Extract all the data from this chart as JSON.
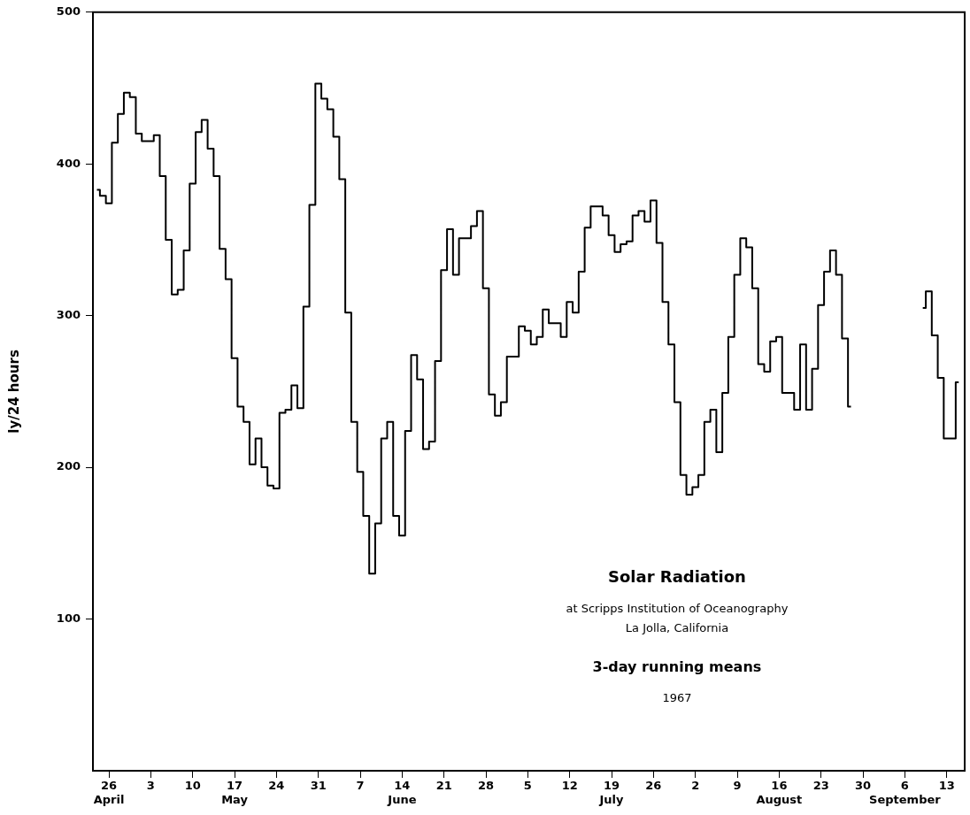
{
  "chart_data": {
    "type": "step",
    "title": "Solar Radiation",
    "subtitle": "at Scripps Institution of Oceanography",
    "annotations": [
      "La Jolla, California",
      "3-day running means",
      "1967"
    ],
    "ylabel": "ly/24 hours",
    "color": "#000000",
    "x": [
      "1967-04-24",
      "1967-04-25",
      "1967-04-26",
      "1967-04-27",
      "1967-04-28",
      "1967-04-29",
      "1967-04-30",
      "1967-05-01",
      "1967-05-02",
      "1967-05-03",
      "1967-05-04",
      "1967-05-05",
      "1967-05-06",
      "1967-05-07",
      "1967-05-08",
      "1967-05-09",
      "1967-05-10",
      "1967-05-11",
      "1967-05-12",
      "1967-05-13",
      "1967-05-14",
      "1967-05-15",
      "1967-05-16",
      "1967-05-17",
      "1967-05-18",
      "1967-05-19",
      "1967-05-20",
      "1967-05-21",
      "1967-05-22",
      "1967-05-23",
      "1967-05-24",
      "1967-05-25",
      "1967-05-26",
      "1967-05-27",
      "1967-05-28",
      "1967-05-29",
      "1967-05-30",
      "1967-05-31",
      "1967-06-01",
      "1967-06-02",
      "1967-06-03",
      "1967-06-04",
      "1967-06-05",
      "1967-06-06",
      "1967-06-07",
      "1967-06-08",
      "1967-06-09",
      "1967-06-10",
      "1967-06-11",
      "1967-06-12",
      "1967-06-13",
      "1967-06-14",
      "1967-06-15",
      "1967-06-16",
      "1967-06-17",
      "1967-06-18",
      "1967-06-19",
      "1967-06-20",
      "1967-06-21",
      "1967-06-22",
      "1967-06-23",
      "1967-06-24",
      "1967-06-25",
      "1967-06-26",
      "1967-06-27",
      "1967-06-28",
      "1967-06-29",
      "1967-06-30",
      "1967-07-01",
      "1967-07-02",
      "1967-07-03",
      "1967-07-04",
      "1967-07-05",
      "1967-07-06",
      "1967-07-07",
      "1967-07-08",
      "1967-07-09",
      "1967-07-10",
      "1967-07-11",
      "1967-07-12",
      "1967-07-13",
      "1967-07-14",
      "1967-07-15",
      "1967-07-16",
      "1967-07-17",
      "1967-07-18",
      "1967-07-19",
      "1967-07-20",
      "1967-07-21",
      "1967-07-22",
      "1967-07-23",
      "1967-07-24",
      "1967-07-25",
      "1967-07-26",
      "1967-07-27",
      "1967-07-28",
      "1967-07-29",
      "1967-07-30",
      "1967-07-31",
      "1967-08-01",
      "1967-08-02",
      "1967-08-03",
      "1967-08-04",
      "1967-08-05",
      "1967-08-06",
      "1967-08-07",
      "1967-08-08",
      "1967-08-09",
      "1967-08-10",
      "1967-08-11",
      "1967-08-12",
      "1967-08-13",
      "1967-08-14",
      "1967-08-15",
      "1967-08-16",
      "1967-08-17",
      "1967-08-18",
      "1967-08-19",
      "1967-08-20",
      "1967-08-21",
      "1967-08-22",
      "1967-08-23",
      "1967-08-24",
      "1967-08-25",
      "1967-08-26",
      "1967-08-27",
      "1967-08-28",
      "1967-08-29",
      "1967-08-30",
      "1967-08-31",
      "1967-09-01",
      "1967-09-02",
      "1967-09-03",
      "1967-09-04",
      "1967-09-05",
      "1967-09-06",
      "1967-09-07",
      "1967-09-08",
      "1967-09-09",
      "1967-09-10",
      "1967-09-11",
      "1967-09-12",
      "1967-09-13",
      "1967-09-14",
      "1967-09-15"
    ],
    "values": [
      383,
      379,
      374,
      414,
      433,
      447,
      444,
      420,
      415,
      415,
      419,
      392,
      350,
      314,
      317,
      343,
      387,
      421,
      429,
      410,
      392,
      344,
      324,
      272,
      240,
      230,
      202,
      219,
      200,
      188,
      186,
      236,
      238,
      254,
      239,
      306,
      373,
      453,
      443,
      436,
      418,
      390,
      302,
      230,
      197,
      168,
      130,
      163,
      219,
      230,
      168,
      155,
      224,
      274,
      258,
      212,
      217,
      270,
      330,
      357,
      327,
      351,
      351,
      359,
      369,
      318,
      248,
      234,
      243,
      273,
      273,
      293,
      290,
      281,
      286,
      304,
      295,
      295,
      286,
      309,
      302,
      329,
      358,
      372,
      372,
      366,
      353,
      342,
      347,
      349,
      366,
      369,
      362,
      376,
      348,
      309,
      281,
      243,
      195,
      182,
      187,
      195,
      230,
      238,
      210,
      249,
      286,
      327,
      351,
      345,
      318,
      268,
      263,
      283,
      286,
      249,
      249,
      238,
      281,
      238,
      265,
      307,
      329,
      343,
      327,
      285,
      240,
      null,
      null,
      null,
      null,
      null,
      null,
      null,
      null,
      null,
      null,
      null,
      305,
      316,
      287,
      259,
      219,
      219,
      256
    ],
    "xlim": [
      "1967-04-23T08:00",
      "1967-09-16"
    ],
    "xticks": [
      {
        "value": "1967-04-26",
        "label": "26\nApril"
      },
      {
        "value": "1967-05-03",
        "label": "3"
      },
      {
        "value": "1967-05-10",
        "label": "10"
      },
      {
        "value": "1967-05-17",
        "label": "17\nMay"
      },
      {
        "value": "1967-05-24",
        "label": "24"
      },
      {
        "value": "1967-05-31",
        "label": "31"
      },
      {
        "value": "1967-06-07",
        "label": "7"
      },
      {
        "value": "1967-06-14",
        "label": "14\nJune"
      },
      {
        "value": "1967-06-21",
        "label": "21"
      },
      {
        "value": "1967-06-28",
        "label": "28"
      },
      {
        "value": "1967-07-05",
        "label": "5"
      },
      {
        "value": "1967-07-12",
        "label": "12"
      },
      {
        "value": "1967-07-19",
        "label": "19\nJuly"
      },
      {
        "value": "1967-07-26",
        "label": "26"
      },
      {
        "value": "1967-08-02",
        "label": "2"
      },
      {
        "value": "1967-08-09",
        "label": "9"
      },
      {
        "value": "1967-08-16",
        "label": "16\nAugust"
      },
      {
        "value": "1967-08-23",
        "label": "23"
      },
      {
        "value": "1967-08-30",
        "label": "30"
      },
      {
        "value": "1967-09-06",
        "label": "6\nSeptember"
      },
      {
        "value": "1967-09-13",
        "label": "13"
      }
    ],
    "ylim": [
      0,
      500
    ],
    "yticks": [
      100,
      200,
      300,
      400,
      500
    ]
  }
}
